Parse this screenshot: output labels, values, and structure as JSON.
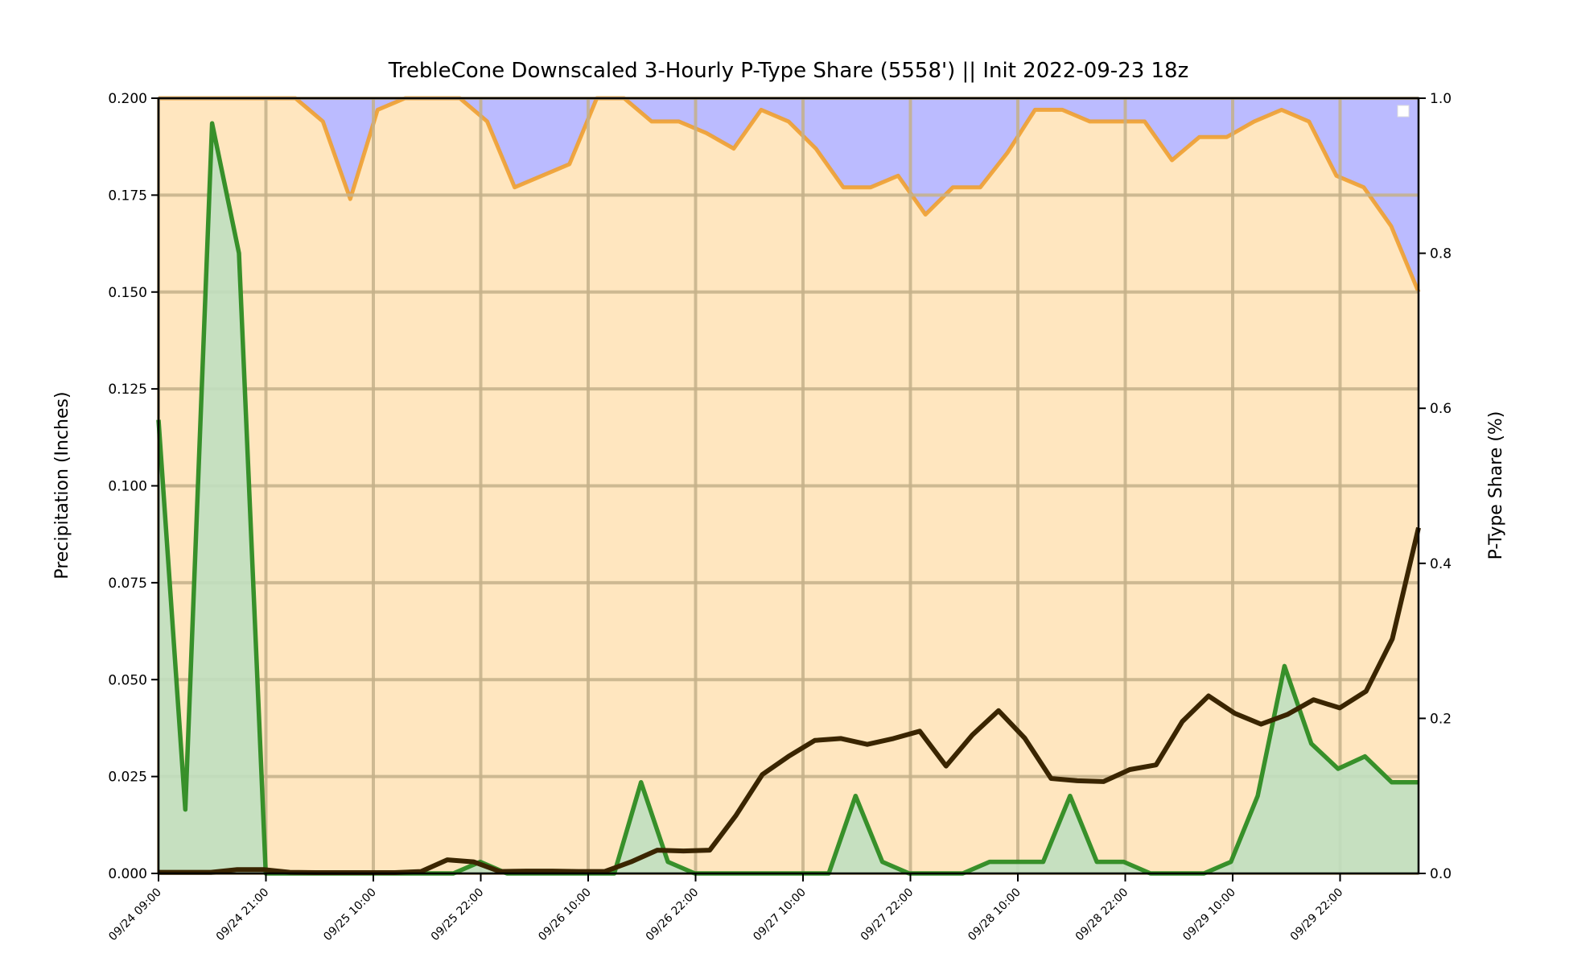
{
  "chart_data": {
    "type": "area",
    "title": "TrebleCone Downscaled 3-Hourly P-Type Share (5558') || Init 2022-09-23 18z",
    "ylabel": "Precipitation (Inches)",
    "ylabel_right": "P-Type Share (%)",
    "ylim": [
      0,
      0.2
    ],
    "ylim_right": [
      0,
      1.0
    ],
    "yticks": [
      "0.000",
      "0.025",
      "0.050",
      "0.075",
      "0.100",
      "0.125",
      "0.150",
      "0.175",
      "0.200"
    ],
    "yticks_right": [
      "0.0",
      "0.2",
      "0.4",
      "0.6",
      "0.8",
      "1.0"
    ],
    "xticks": [
      "09/24 09:00",
      "09/24 21:00",
      "09/25 10:00",
      "09/25 22:00",
      "09/26 10:00",
      "09/26 22:00",
      "09/27 10:00",
      "09/27 22:00",
      "09/28 10:00",
      "09/28 22:00",
      "09/29 10:00",
      "09/29 22:00"
    ],
    "grid": true,
    "legend": "top-right",
    "colors": {
      "background": "#ffe6bf",
      "snow_share_fill": "#bbbbff",
      "snow_share_line": "#f0a030",
      "precip_line": "#2e8b22",
      "precip_fill": "#c0dfc0",
      "accum_line": "#3a2500",
      "grid": "#c4b08a"
    },
    "series": [
      {
        "role": "right-axis-share",
        "values": [
          1.0,
          1.0,
          1.0,
          1.0,
          1.0,
          1.0,
          0.97,
          0.87,
          0.985,
          1.0,
          1.0,
          1.0,
          0.97,
          0.885,
          0.9,
          0.915,
          1.0,
          1.0,
          0.97,
          0.97,
          0.955,
          0.935,
          0.985,
          0.97,
          0.935,
          0.885,
          0.885,
          0.9,
          0.85,
          0.885,
          0.885,
          0.93,
          0.985,
          0.985,
          0.97,
          0.97,
          0.97,
          0.92,
          0.95,
          0.95,
          0.97,
          0.985,
          0.97,
          0.9,
          0.885,
          0.835,
          0.75
        ]
      },
      {
        "role": "precip-per-step",
        "values": [
          0.117,
          0.0165,
          0.1935,
          0.16,
          0.0,
          0.0,
          0.0,
          0.0,
          0.0,
          0.0,
          0.0,
          0.0,
          0.003,
          0.0,
          0.0,
          0.0,
          0.0,
          0.0,
          0.0235,
          0.003,
          0.0,
          0.0,
          0.0,
          0.0,
          0.0,
          0.0,
          0.02,
          0.003,
          0.0,
          0.0,
          0.0,
          0.003,
          0.003,
          0.003,
          0.02,
          0.003,
          0.003,
          0.0,
          0.0,
          0.0,
          0.003,
          0.02,
          0.0535,
          0.0335,
          0.027,
          0.0302,
          0.0235,
          0.0235
        ]
      },
      {
        "role": "precip-accumulation",
        "values": [
          0.0003,
          0.0003,
          0.0003,
          0.001,
          0.001,
          0.0003,
          0.0002,
          0.0002,
          0.0002,
          0.0002,
          0.0005,
          0.0035,
          0.003,
          0.0005,
          0.0006,
          0.0006,
          0.0005,
          0.0005,
          0.003,
          0.006,
          0.0058,
          0.006,
          0.015,
          0.0255,
          0.0302,
          0.0343,
          0.0348,
          0.0333,
          0.0348,
          0.0367,
          0.0277,
          0.0357,
          0.042,
          0.0349,
          0.0245,
          0.0239,
          0.0237,
          0.0268,
          0.028,
          0.0392,
          0.0458,
          0.0413,
          0.0385,
          0.041,
          0.0448,
          0.0427,
          0.047,
          0.0605,
          0.0892
        ]
      }
    ]
  }
}
